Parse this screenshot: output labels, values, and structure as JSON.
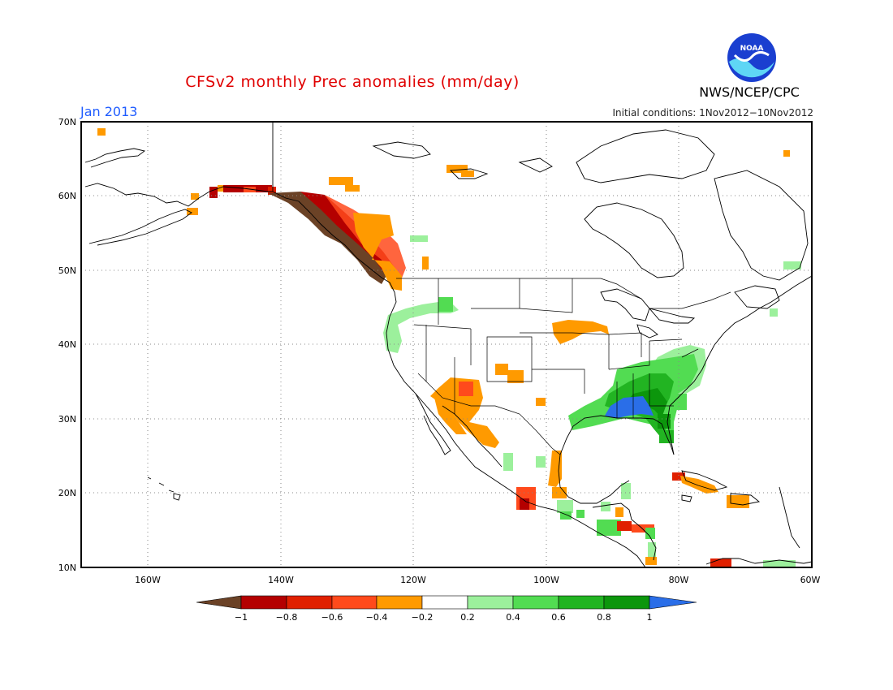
{
  "header": {
    "title": "CFSv2 monthly Prec anomalies (mm/day)",
    "month": "Jan 2013",
    "initial_conditions": "Initial conditions: 1Nov2012−10Nov2012",
    "agency": "NWS/NCEP/CPC",
    "logo_text": "NOAA"
  },
  "map": {
    "lat_labels": [
      "70N",
      "60N",
      "50N",
      "40N",
      "30N",
      "20N",
      "10N"
    ],
    "lon_labels": [
      "160W",
      "140W",
      "120W",
      "100W",
      "80W",
      "60W"
    ],
    "grid": "dotted"
  },
  "legend": {
    "labels": [
      "−1",
      "−0.8",
      "−0.6",
      "−0.4",
      "−0.2",
      "0.2",
      "0.4",
      "0.6",
      "0.8",
      "1"
    ],
    "colors": {
      "below_minus1": "#6b4226",
      "minus1_to_minus08": "#b40000",
      "minus08_to_minus06": "#e02000",
      "minus06_to_minus04": "#ff4a1c",
      "minus04_to_minus02": "#ff9a00",
      "minus02_to_02": "#ffffff",
      "p02_to_p04": "#9cf09c",
      "p04_to_p06": "#52dc52",
      "p06_to_p08": "#22b422",
      "p08_to_p1": "#0c960c",
      "above_1": "#2a6ee8"
    }
  }
}
